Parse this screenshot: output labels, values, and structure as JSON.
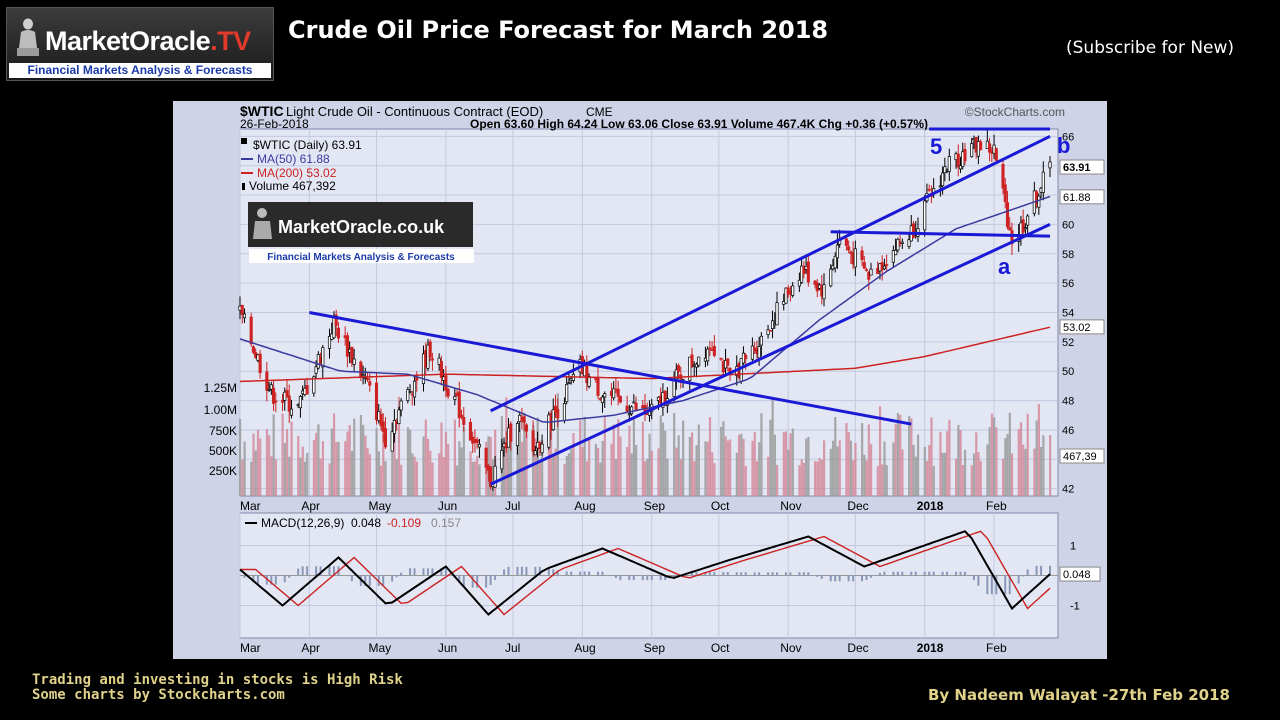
{
  "header": {
    "logo_name": "MarketOracle",
    "logo_tv": ".TV",
    "logo_tagline": "Financial Markets Analysis & Forecasts",
    "title": "Crude Oil Price Forecast for March 2018",
    "subscribe": "(Subscribe for New)"
  },
  "footer": {
    "disclaimer_line1": "Trading and investing in stocks is High Risk",
    "disclaimer_line2": "Some charts by Stockcharts.com",
    "author": "By Nadeem Walayat -27th Feb 2018"
  },
  "chart_header": {
    "symbol": "$WTIC",
    "description": "Light Crude Oil - Continuous Contract (EOD)",
    "exchange": "CME",
    "watermark": "©StockCharts.com",
    "date": "26-Feb-2018",
    "ohlc": "Open 63.60   High 64.24   Low 63.06   Close 63.91   Volume 467.4K   Chg +0.36 (+0.57%)"
  },
  "legend": [
    {
      "label": "$WTIC (Daily) 63.91",
      "color": "#000000"
    },
    {
      "label": "MA(50) 61.88",
      "color": "#3a3aa0"
    },
    {
      "label": "MA(200) 53.02",
      "color": "#cc2222"
    },
    {
      "label": "Volume 467,392",
      "color": "#000000"
    }
  ],
  "inset_logo": {
    "name": "MarketOracle.co.uk",
    "tagline": "Financial Markets Analysis & Forecasts"
  },
  "macd_legend": {
    "label": "MACD(12,26,9)",
    "macd": "0.048",
    "signal": "-0.109",
    "histogram": "0.157"
  },
  "annotations": {
    "wave5": "5",
    "wave_a": "a",
    "wave_b": "b"
  },
  "colors": {
    "panel": "#e3e7f4",
    "frame": "#cfd3e8",
    "trend": "#1a1ad6",
    "candle_up": "#000000",
    "candle_down": "#cc2222",
    "ma50": "#3a3aa0",
    "ma200": "#cc2222",
    "volume": "#d48a9a"
  },
  "chart_data": {
    "type": "line",
    "title": "$WTIC Light Crude Oil - Continuous Contract (EOD)",
    "x_months": [
      "Mar",
      "Apr",
      "May",
      "Jun",
      "Jul",
      "Aug",
      "Sep",
      "Oct",
      "Nov",
      "Dec",
      "2018",
      "Feb"
    ],
    "y_ticks": [
      42,
      44,
      46,
      48,
      50,
      52,
      54,
      56,
      58,
      60,
      62,
      64,
      66
    ],
    "volume_ticks": [
      "1.25M",
      "1.00M",
      "750K",
      "500K",
      "250K"
    ],
    "ylim": [
      41.5,
      66.5
    ],
    "last_values": {
      "close": "63.91",
      "ma50": "61.88",
      "ma200": "53.02",
      "volume": "467,39"
    },
    "series": [
      {
        "name": "$WTIC (Daily)",
        "x": [
          "2017-03-01",
          "2017-03-15",
          "2017-03-27",
          "2017-04-12",
          "2017-04-27",
          "2017-05-05",
          "2017-05-25",
          "2017-06-12",
          "2017-06-21",
          "2017-07-03",
          "2017-07-10",
          "2017-07-31",
          "2017-08-10",
          "2017-08-31",
          "2017-09-12",
          "2017-09-28",
          "2017-10-06",
          "2017-10-20",
          "2017-11-07",
          "2017-11-17",
          "2017-11-24",
          "2017-12-07",
          "2017-12-26",
          "2018-01-11",
          "2018-01-25",
          "2018-02-01",
          "2018-02-09",
          "2018-02-14",
          "2018-02-20",
          "2018-02-26"
        ],
        "values": [
          54.0,
          48.5,
          47.5,
          53.3,
          49.0,
          45.5,
          51.5,
          45.8,
          42.5,
          47.0,
          44.5,
          50.2,
          48.5,
          47.0,
          49.5,
          52.0,
          49.5,
          52.2,
          57.0,
          55.5,
          59.0,
          56.5,
          59.5,
          64.0,
          65.5,
          65.0,
          59.0,
          60.0,
          62.0,
          63.9
        ]
      },
      {
        "name": "MA(50)",
        "x": [
          "2017-03-01",
          "2017-04-15",
          "2017-05-15",
          "2017-06-15",
          "2017-07-15",
          "2017-08-15",
          "2017-09-15",
          "2017-10-15",
          "2017-11-15",
          "2017-12-15",
          "2018-01-15",
          "2018-02-26"
        ],
        "values": [
          52.2,
          50.0,
          49.8,
          48.4,
          46.5,
          47.0,
          48.0,
          49.5,
          53.5,
          56.8,
          59.7,
          61.9
        ]
      },
      {
        "name": "MA(200)",
        "x": [
          "2017-03-01",
          "2017-06-01",
          "2017-09-01",
          "2017-12-01",
          "2018-01-01",
          "2018-02-26"
        ],
        "values": [
          49.3,
          49.8,
          49.5,
          50.2,
          51.0,
          53.0
        ]
      },
      {
        "name": "MACD(12,26,9)",
        "x": [
          "2017-03-01",
          "2017-03-20",
          "2017-04-14",
          "2017-05-06",
          "2017-06-01",
          "2017-06-20",
          "2017-07-15",
          "2017-08-10",
          "2017-09-10",
          "2017-10-05",
          "2017-11-10",
          "2017-12-05",
          "2018-01-20",
          "2018-02-09",
          "2018-02-26"
        ],
        "values": [
          0.2,
          -1.0,
          0.6,
          -1.0,
          0.3,
          -1.3,
          0.2,
          0.9,
          -0.1,
          0.5,
          1.3,
          0.3,
          1.5,
          -1.1,
          0.048
        ]
      }
    ],
    "macd_ticks": [
      "1",
      "-1"
    ]
  }
}
